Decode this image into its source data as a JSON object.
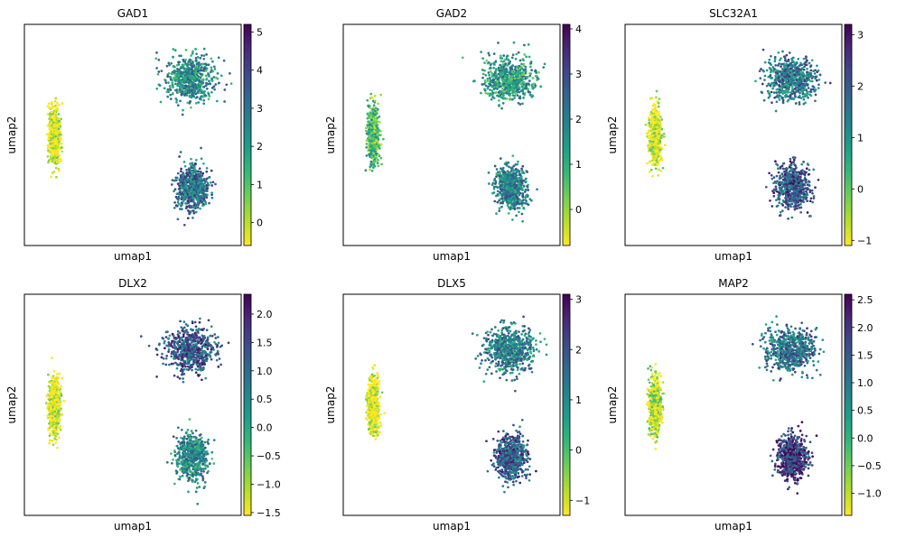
{
  "palette": [
    "#fde725",
    "#b5de2b",
    "#6ece58",
    "#35b779",
    "#1f9e89",
    "#26828e",
    "#31688e",
    "#3e4989",
    "#482878",
    "#440154"
  ],
  "chart_data": [
    {
      "type": "scatter",
      "title": "GAD1",
      "xlabel": "umap1",
      "ylabel": "umap2",
      "grid": false,
      "colorbar": {
        "ticks": [
          "0",
          "1",
          "2",
          "3",
          "4",
          "5"
        ],
        "tick_values": [
          0,
          1,
          2,
          3,
          4,
          5
        ],
        "range": [
          -0.6,
          5.2
        ]
      },
      "clusters": [
        {
          "name": "left",
          "center": [
            -8.8,
            3.4
          ],
          "spread": [
            0.55,
            2.0
          ],
          "level": 0.02
        },
        {
          "name": "upper-right",
          "center": [
            5.6,
            8.0
          ],
          "spread": [
            2.4,
            1.6
          ],
          "level": 0.5
        },
        {
          "name": "lower-right",
          "center": [
            5.8,
            -0.8
          ],
          "spread": [
            1.5,
            1.6
          ],
          "level": 0.62
        }
      ]
    },
    {
      "type": "scatter",
      "title": "GAD2",
      "xlabel": "umap1",
      "ylabel": "umap2",
      "grid": false,
      "colorbar": {
        "ticks": [
          "0",
          "1",
          "2",
          "3",
          "4"
        ],
        "tick_values": [
          0,
          1,
          2,
          3,
          4
        ],
        "range": [
          -0.8,
          4.1
        ]
      },
      "clusters": [
        {
          "name": "left",
          "center": [
            -8.8,
            3.4
          ],
          "spread": [
            0.55,
            2.0
          ],
          "level": 0.3
        },
        {
          "name": "upper-right",
          "center": [
            5.6,
            8.0
          ],
          "spread": [
            2.4,
            1.6
          ],
          "level": 0.45
        },
        {
          "name": "lower-right",
          "center": [
            5.8,
            -0.8
          ],
          "spread": [
            1.5,
            1.6
          ],
          "level": 0.55
        }
      ]
    },
    {
      "type": "scatter",
      "title": "SLC32A1",
      "xlabel": "umap1",
      "ylabel": "umap2",
      "grid": false,
      "colorbar": {
        "ticks": [
          "−1",
          "0",
          "1",
          "2",
          "3"
        ],
        "tick_values": [
          -1,
          0,
          1,
          2,
          3
        ],
        "range": [
          -1.1,
          3.2
        ]
      },
      "clusters": [
        {
          "name": "left",
          "center": [
            -8.8,
            3.4
          ],
          "spread": [
            0.55,
            2.0
          ],
          "level": 0.02
        },
        {
          "name": "upper-right",
          "center": [
            5.6,
            8.0
          ],
          "spread": [
            2.4,
            1.6
          ],
          "level": 0.6
        },
        {
          "name": "lower-right",
          "center": [
            5.8,
            -0.8
          ],
          "spread": [
            1.5,
            1.6
          ],
          "level": 0.72
        }
      ]
    },
    {
      "type": "scatter",
      "title": "DLX2",
      "xlabel": "umap1",
      "ylabel": "umap2",
      "grid": false,
      "colorbar": {
        "ticks": [
          "−1.5",
          "−1.0",
          "−0.5",
          "0.0",
          "0.5",
          "1.0",
          "1.5",
          "2.0"
        ],
        "tick_values": [
          -1.5,
          -1.0,
          -0.5,
          0.0,
          0.5,
          1.0,
          1.5,
          2.0
        ],
        "range": [
          -1.55,
          2.35
        ]
      },
      "clusters": [
        {
          "name": "left",
          "center": [
            -8.8,
            3.4
          ],
          "spread": [
            0.55,
            2.0
          ],
          "level": 0.02
        },
        {
          "name": "upper-right",
          "center": [
            5.6,
            8.0
          ],
          "spread": [
            2.4,
            1.6
          ],
          "level": 0.72
        },
        {
          "name": "lower-right",
          "center": [
            5.8,
            -0.8
          ],
          "spread": [
            1.5,
            1.6
          ],
          "level": 0.52
        }
      ]
    },
    {
      "type": "scatter",
      "title": "DLX5",
      "xlabel": "umap1",
      "ylabel": "umap2",
      "grid": false,
      "colorbar": {
        "ticks": [
          "−1",
          "0",
          "1",
          "2",
          "3"
        ],
        "tick_values": [
          -1,
          0,
          1,
          2,
          3
        ],
        "range": [
          -1.3,
          3.1
        ]
      },
      "clusters": [
        {
          "name": "left",
          "center": [
            -8.8,
            3.4
          ],
          "spread": [
            0.55,
            2.0
          ],
          "level": 0.0
        },
        {
          "name": "upper-right",
          "center": [
            5.6,
            8.0
          ],
          "spread": [
            2.4,
            1.6
          ],
          "level": 0.55
        },
        {
          "name": "lower-right",
          "center": [
            5.8,
            -0.8
          ],
          "spread": [
            1.5,
            1.6
          ],
          "level": 0.7
        }
      ]
    },
    {
      "type": "scatter",
      "title": "MAP2",
      "xlabel": "umap1",
      "ylabel": "umap2",
      "grid": false,
      "colorbar": {
        "ticks": [
          "−1.0",
          "−0.5",
          "0.0",
          "0.5",
          "1.0",
          "1.5",
          "2.0",
          "2.5"
        ],
        "tick_values": [
          -1.0,
          -0.5,
          0.0,
          0.5,
          1.0,
          1.5,
          2.0,
          2.5
        ],
        "range": [
          -1.4,
          2.6
        ]
      },
      "clusters": [
        {
          "name": "left",
          "center": [
            -8.8,
            3.4
          ],
          "spread": [
            0.55,
            2.0
          ],
          "level": 0.08
        },
        {
          "name": "upper-right",
          "center": [
            5.6,
            8.0
          ],
          "spread": [
            2.4,
            1.6
          ],
          "level": 0.62
        },
        {
          "name": "lower-right",
          "center": [
            5.8,
            -0.8
          ],
          "spread": [
            1.5,
            1.6
          ],
          "level": 0.82
        }
      ]
    }
  ]
}
